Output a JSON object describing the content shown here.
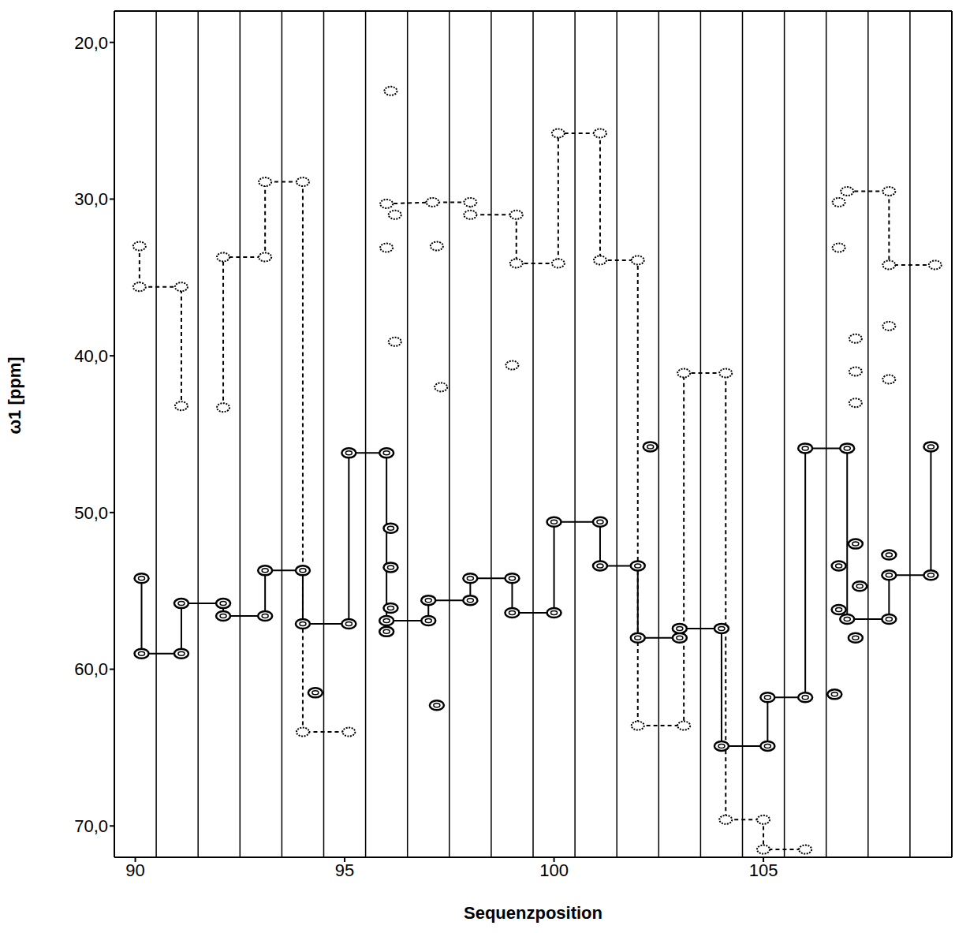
{
  "chart_data": {
    "type": "line",
    "x_label": "Sequenzposition",
    "y_label": "ω1 [ppm]",
    "xlim": [
      89.5,
      109.5
    ],
    "xticks": [
      90,
      95,
      100,
      105
    ],
    "ylim": [
      72,
      18
    ],
    "yticks": [
      {
        "value": 20,
        "label": "20,0"
      },
      {
        "value": 30,
        "label": "30,0"
      },
      {
        "value": 40,
        "label": "40,0"
      },
      {
        "value": 50,
        "label": "50,0"
      },
      {
        "value": 60,
        "label": "60,0"
      },
      {
        "value": 70,
        "label": "70,0"
      }
    ],
    "strip_boundaries": [
      90.5,
      91.5,
      92.5,
      93.5,
      94.5,
      95.5,
      96.5,
      97.5,
      98.5,
      99.5,
      100.5,
      101.5,
      102.5,
      103.5,
      104.5,
      105.5,
      106.5,
      107.5,
      108.5
    ],
    "grid": false,
    "series": [
      {
        "type": "line",
        "color": "#000000",
        "marker": "filled",
        "line_style": "solid",
        "x": [
          90.15,
          90.15,
          91.1,
          91.1,
          92.1,
          92.1,
          93.1,
          93.1,
          94.0,
          94.0,
          95.1,
          95.1,
          96.0,
          96.0,
          97.0,
          97.0,
          98.0,
          98.0,
          99.0,
          99.0,
          100.0,
          100.0,
          101.1,
          101.1,
          102.0,
          102.0,
          103.0,
          103.0,
          104.0,
          104.0,
          105.1,
          105.1,
          106.0,
          106.0,
          107.0,
          107.0,
          108.0,
          108.0,
          109.0,
          109.0
        ],
        "values": [
          54.2,
          59.0,
          59.0,
          55.8,
          55.8,
          56.6,
          56.6,
          53.7,
          53.7,
          57.1,
          57.1,
          46.2,
          46.2,
          56.9,
          56.9,
          55.6,
          55.6,
          54.2,
          54.2,
          56.4,
          56.4,
          50.6,
          50.6,
          53.4,
          53.4,
          58.0,
          58.0,
          57.4,
          57.4,
          64.9,
          64.9,
          61.8,
          61.8,
          45.9,
          45.9,
          56.8,
          56.8,
          54.0,
          54.0,
          45.8
        ]
      },
      {
        "type": "line",
        "color": "#000000",
        "marker": "open",
        "line_style": "dashed",
        "x": [
          90.1,
          90.1,
          91.1,
          91.1,
          91.1,
          92.1,
          92.1,
          93.1,
          93.1,
          94.0,
          94.0,
          95.1,
          95.1,
          96.0,
          97.1,
          98.0,
          98.0,
          99.1,
          99.1,
          100.1,
          100.1,
          101.1,
          101.1,
          102.0,
          102.0,
          103.1,
          103.1,
          104.1,
          104.1,
          105.0,
          105.0,
          106.0,
          106.0,
          107.0,
          108.0,
          108.0,
          109.1
        ],
        "values": [
          33.0,
          35.6,
          35.6,
          43.2,
          null,
          43.3,
          33.7,
          33.7,
          28.9,
          28.9,
          64.0,
          64.0,
          null,
          30.3,
          30.2,
          30.2,
          31.0,
          31.0,
          34.1,
          34.1,
          25.8,
          25.8,
          33.9,
          33.9,
          63.6,
          63.6,
          41.1,
          41.1,
          69.6,
          69.6,
          71.5,
          71.5,
          null,
          29.5,
          29.5,
          34.2,
          34.2
        ]
      },
      {
        "type": "scatter",
        "color": "#000000",
        "marker": "filled",
        "x": [
          94.3,
          96.1,
          96.1,
          96.0,
          96.1,
          97.2,
          102.3,
          106.8,
          106.8,
          106.7,
          107.2,
          107.2,
          107.3,
          108.0
        ],
        "values": [
          61.5,
          51.0,
          53.5,
          57.6,
          56.1,
          62.3,
          45.8,
          53.4,
          56.2,
          61.6,
          58.0,
          52.0,
          54.7,
          52.7
        ]
      },
      {
        "type": "scatter",
        "color": "#000000",
        "marker": "open",
        "x": [
          96.1,
          96.0,
          96.2,
          96.2,
          97.2,
          97.3,
          99.0,
          106.8,
          106.8,
          107.2,
          107.2,
          107.2,
          108.0,
          108.0
        ],
        "values": [
          23.1,
          33.1,
          39.1,
          31.0,
          33.0,
          42.0,
          40.6,
          30.2,
          33.1,
          38.9,
          41.0,
          43.0,
          38.1,
          41.5
        ]
      }
    ]
  }
}
